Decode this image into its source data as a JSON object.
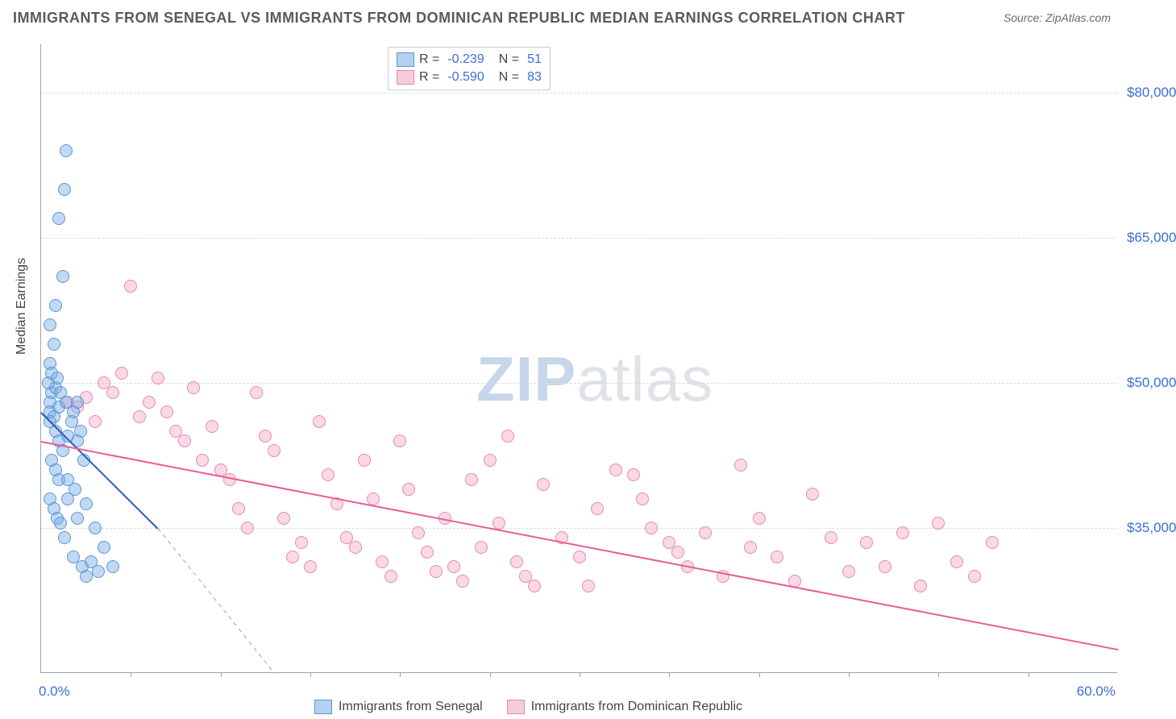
{
  "title": "IMMIGRANTS FROM SENEGAL VS IMMIGRANTS FROM DOMINICAN REPUBLIC MEDIAN EARNINGS CORRELATION CHART",
  "source": "Source: ZipAtlas.com",
  "watermark_bold": "ZIP",
  "watermark_rest": "atlas",
  "chart": {
    "type": "scatter",
    "xlim": [
      0,
      60
    ],
    "ylim": [
      20000,
      85000
    ],
    "x_unit": "%",
    "ylabel": "Median Earnings",
    "x_start_label": "0.0%",
    "x_end_label": "60.0%",
    "xtick_positions": [
      5,
      10,
      15,
      20,
      25,
      30,
      35,
      40,
      45,
      50,
      55
    ],
    "y_gridlines": [
      35000,
      50000,
      65000,
      80000
    ],
    "y_tick_labels": [
      "$35,000",
      "$50,000",
      "$65,000",
      "$80,000"
    ],
    "background_color": "#ffffff",
    "grid_color": "#d9dde1",
    "axis_color": "#9aa3ad",
    "label_color": "#3a6fd8",
    "marker_radius": 8,
    "series": {
      "a": {
        "name": "Immigrants from Senegal",
        "fill": "rgba(120,170,230,0.45)",
        "stroke": "#5a96d6",
        "trend_color": "#2a5bbd",
        "R": "-0.239",
        "N": "51",
        "trend": {
          "x1": 0,
          "y1": 47000,
          "x2": 6.5,
          "y2": 35000,
          "dash_to_x": 13,
          "dash_to_y": 20000
        },
        "points": [
          [
            0.5,
            48000
          ],
          [
            0.5,
            47000
          ],
          [
            0.6,
            49000
          ],
          [
            0.8,
            49500
          ],
          [
            0.5,
            46000
          ],
          [
            0.7,
            46500
          ],
          [
            1.0,
            47500
          ],
          [
            0.8,
            45000
          ],
          [
            0.5,
            52000
          ],
          [
            0.7,
            54000
          ],
          [
            0.5,
            56000
          ],
          [
            0.8,
            58000
          ],
          [
            1.2,
            61000
          ],
          [
            1.0,
            67000
          ],
          [
            1.4,
            74000
          ],
          [
            1.3,
            70000
          ],
          [
            1.0,
            44000
          ],
          [
            1.2,
            43000
          ],
          [
            0.6,
            42000
          ],
          [
            0.8,
            41000
          ],
          [
            1.5,
            44500
          ],
          [
            1.8,
            47000
          ],
          [
            2.0,
            48000
          ],
          [
            2.2,
            45000
          ],
          [
            1.0,
            40000
          ],
          [
            1.5,
            38000
          ],
          [
            2.0,
            36000
          ],
          [
            2.5,
            37500
          ],
          [
            3.0,
            35000
          ],
          [
            3.5,
            33000
          ],
          [
            1.3,
            34000
          ],
          [
            1.8,
            32000
          ],
          [
            0.5,
            38000
          ],
          [
            0.7,
            37000
          ],
          [
            0.9,
            36000
          ],
          [
            1.1,
            35500
          ],
          [
            2.3,
            31000
          ],
          [
            2.8,
            31500
          ],
          [
            3.2,
            30500
          ],
          [
            4.0,
            31000
          ],
          [
            0.4,
            50000
          ],
          [
            0.6,
            51000
          ],
          [
            0.9,
            50500
          ],
          [
            1.1,
            49000
          ],
          [
            1.4,
            48000
          ],
          [
            1.7,
            46000
          ],
          [
            2.0,
            44000
          ],
          [
            2.4,
            42000
          ],
          [
            1.5,
            40000
          ],
          [
            1.9,
            39000
          ],
          [
            2.5,
            30000
          ]
        ]
      },
      "b": {
        "name": "Immigrants from Dominican Republic",
        "fill": "rgba(240,160,190,0.40)",
        "stroke": "#e68aad",
        "trend_color": "#e85d9a",
        "R": "-0.590",
        "N": "83",
        "trend": {
          "x1": 0,
          "y1": 44000,
          "x2": 60,
          "y2": 22500
        },
        "points": [
          [
            1.5,
            48000
          ],
          [
            2.0,
            47500
          ],
          [
            2.5,
            48500
          ],
          [
            3.0,
            46000
          ],
          [
            3.5,
            50000
          ],
          [
            4.0,
            49000
          ],
          [
            4.5,
            51000
          ],
          [
            5.0,
            60000
          ],
          [
            5.5,
            46500
          ],
          [
            6.0,
            48000
          ],
          [
            6.5,
            50500
          ],
          [
            7.0,
            47000
          ],
          [
            7.5,
            45000
          ],
          [
            8.0,
            44000
          ],
          [
            8.5,
            49500
          ],
          [
            9.0,
            42000
          ],
          [
            9.5,
            45500
          ],
          [
            10.0,
            41000
          ],
          [
            10.5,
            40000
          ],
          [
            11.0,
            37000
          ],
          [
            11.5,
            35000
          ],
          [
            12.0,
            49000
          ],
          [
            12.5,
            44500
          ],
          [
            13.0,
            43000
          ],
          [
            13.5,
            36000
          ],
          [
            14.0,
            32000
          ],
          [
            14.5,
            33500
          ],
          [
            15.0,
            31000
          ],
          [
            15.5,
            46000
          ],
          [
            16.0,
            40500
          ],
          [
            16.5,
            37500
          ],
          [
            17.0,
            34000
          ],
          [
            17.5,
            33000
          ],
          [
            18.0,
            42000
          ],
          [
            18.5,
            38000
          ],
          [
            19.0,
            31500
          ],
          [
            19.5,
            30000
          ],
          [
            20.0,
            44000
          ],
          [
            20.5,
            39000
          ],
          [
            21.0,
            34500
          ],
          [
            21.5,
            32500
          ],
          [
            22.0,
            30500
          ],
          [
            22.5,
            36000
          ],
          [
            23.0,
            31000
          ],
          [
            23.5,
            29500
          ],
          [
            24.0,
            40000
          ],
          [
            24.5,
            33000
          ],
          [
            25.0,
            42000
          ],
          [
            25.5,
            35500
          ],
          [
            26.0,
            44500
          ],
          [
            26.5,
            31500
          ],
          [
            27.0,
            30000
          ],
          [
            27.5,
            29000
          ],
          [
            28.0,
            39500
          ],
          [
            29.0,
            34000
          ],
          [
            30.0,
            32000
          ],
          [
            31.0,
            37000
          ],
          [
            32.0,
            41000
          ],
          [
            33.0,
            40500
          ],
          [
            34.0,
            35000
          ],
          [
            35.0,
            33500
          ],
          [
            36.0,
            31000
          ],
          [
            37.0,
            34500
          ],
          [
            38.0,
            30000
          ],
          [
            39.0,
            41500
          ],
          [
            40.0,
            36000
          ],
          [
            41.0,
            32000
          ],
          [
            42.0,
            29500
          ],
          [
            43.0,
            38500
          ],
          [
            44.0,
            34000
          ],
          [
            45.0,
            30500
          ],
          [
            46.0,
            33500
          ],
          [
            47.0,
            31000
          ],
          [
            48.0,
            34500
          ],
          [
            49.0,
            29000
          ],
          [
            50.0,
            35500
          ],
          [
            51.0,
            31500
          ],
          [
            52.0,
            30000
          ],
          [
            39.5,
            33000
          ],
          [
            33.5,
            38000
          ],
          [
            35.5,
            32500
          ],
          [
            30.5,
            29000
          ],
          [
            53.0,
            33500
          ]
        ]
      }
    }
  }
}
